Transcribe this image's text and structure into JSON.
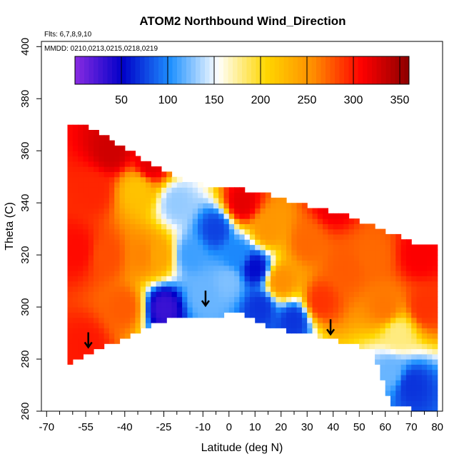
{
  "chart_data": {
    "type": "heatmap",
    "title": "ATOM2 Northbound Wind_Direction",
    "flights_note": "Flts: 6,7,8,9,10",
    "dates_note": "MMDD: 0210,0213,0215,0218,0219",
    "xlabel": "Latitude (deg N)",
    "ylabel": "Theta (C)",
    "xlim": [
      -72,
      82
    ],
    "ylim": [
      260,
      402
    ],
    "x_ticks": [
      "-70",
      "-55",
      "-40",
      "-25",
      "-10",
      "0",
      "10",
      "20",
      "30",
      "40",
      "50",
      "60",
      "70",
      "80"
    ],
    "x_tick_values": [
      -70,
      -55,
      -40,
      -25,
      -10,
      0,
      10,
      20,
      30,
      40,
      50,
      60,
      70,
      80
    ],
    "y_ticks": [
      "260",
      "280",
      "300",
      "320",
      "340",
      "360",
      "380",
      "400"
    ],
    "y_tick_values": [
      260,
      280,
      300,
      320,
      340,
      360,
      380,
      400
    ],
    "colorbar": {
      "range": [
        0,
        360
      ],
      "ticks": [
        "50",
        "100",
        "150",
        "200",
        "250",
        "300",
        "350"
      ],
      "tick_values": [
        50,
        100,
        150,
        200,
        250,
        300,
        350
      ],
      "colors": [
        "#8a2be2",
        "#0000c8",
        "#1e90ff",
        "#ffffff",
        "#ffd700",
        "#ff8c00",
        "#ff0000",
        "#8b0000"
      ]
    },
    "data_envelope": {
      "top": [
        [
          -62,
          369
        ],
        [
          -55,
          369
        ],
        [
          -45,
          364
        ],
        [
          -35,
          358
        ],
        [
          -25,
          352
        ],
        [
          -15,
          348
        ],
        [
          -5,
          346
        ],
        [
          5,
          345
        ],
        [
          15,
          343
        ],
        [
          25,
          340
        ],
        [
          35,
          338
        ],
        [
          45,
          335
        ],
        [
          55,
          331
        ],
        [
          65,
          327
        ],
        [
          73,
          324
        ],
        [
          79,
          323
        ]
      ],
      "bottom": [
        [
          -62,
          277
        ],
        [
          -55,
          282
        ],
        [
          -50,
          284
        ],
        [
          -45,
          286
        ],
        [
          -35,
          291
        ],
        [
          -25,
          295
        ],
        [
          -10,
          296
        ],
        [
          -2,
          297
        ],
        [
          5,
          298
        ],
        [
          15,
          293
        ],
        [
          25,
          290
        ],
        [
          35,
          289
        ],
        [
          45,
          286
        ],
        [
          55,
          284
        ],
        [
          62,
          263
        ],
        [
          70,
          261
        ],
        [
          79,
          261
        ]
      ]
    },
    "field_features": [
      {
        "lat": -58,
        "theta": 322,
        "value": 305
      },
      {
        "lat": -52,
        "theta": 345,
        "value": 295
      },
      {
        "lat": -47,
        "theta": 320,
        "value": 280
      },
      {
        "lat": -40,
        "theta": 300,
        "value": 275
      },
      {
        "lat": -35,
        "theta": 345,
        "value": 220
      },
      {
        "lat": -33,
        "theta": 320,
        "value": 260
      },
      {
        "lat": -27,
        "theta": 320,
        "value": 240
      },
      {
        "lat": -30,
        "theta": 355,
        "value": 320
      },
      {
        "lat": -20,
        "theta": 340,
        "value": 130
      },
      {
        "lat": -15,
        "theta": 320,
        "value": 110
      },
      {
        "lat": -10,
        "theta": 305,
        "value": 120
      },
      {
        "lat": -5,
        "theta": 330,
        "value": 75
      },
      {
        "lat": 0,
        "theta": 310,
        "value": 125
      },
      {
        "lat": 3,
        "theta": 320,
        "value": 100
      },
      {
        "lat": 10,
        "theta": 315,
        "value": 55
      },
      {
        "lat": 12,
        "theta": 300,
        "value": 70
      },
      {
        "lat": 15,
        "theta": 330,
        "value": 250
      },
      {
        "lat": 20,
        "theta": 310,
        "value": 255
      },
      {
        "lat": 30,
        "theta": 325,
        "value": 270
      },
      {
        "lat": 25,
        "theta": 295,
        "value": 70
      },
      {
        "lat": 35,
        "theta": 302,
        "value": 290
      },
      {
        "lat": 45,
        "theta": 315,
        "value": 275
      },
      {
        "lat": 55,
        "theta": 320,
        "value": 270
      },
      {
        "lat": 60,
        "theta": 300,
        "value": 265
      },
      {
        "lat": 65,
        "theta": 290,
        "value": 180
      },
      {
        "lat": 62,
        "theta": 275,
        "value": 120
      },
      {
        "lat": 70,
        "theta": 270,
        "value": 70
      },
      {
        "lat": 75,
        "theta": 300,
        "value": 290
      },
      {
        "lat": 73,
        "theta": 320,
        "value": 310
      },
      {
        "lat": -25,
        "theta": 300,
        "value": 30
      },
      {
        "lat": -55,
        "theta": 285,
        "value": 300
      },
      {
        "lat": 40,
        "theta": 340,
        "value": 315
      },
      {
        "lat": 5,
        "theta": 340,
        "value": 320
      },
      {
        "lat": -45,
        "theta": 360,
        "value": 330
      }
    ],
    "arrows": [
      {
        "lat": -54,
        "theta": 287
      },
      {
        "lat": -9,
        "theta": 303
      },
      {
        "lat": 39,
        "theta": 292
      }
    ]
  }
}
